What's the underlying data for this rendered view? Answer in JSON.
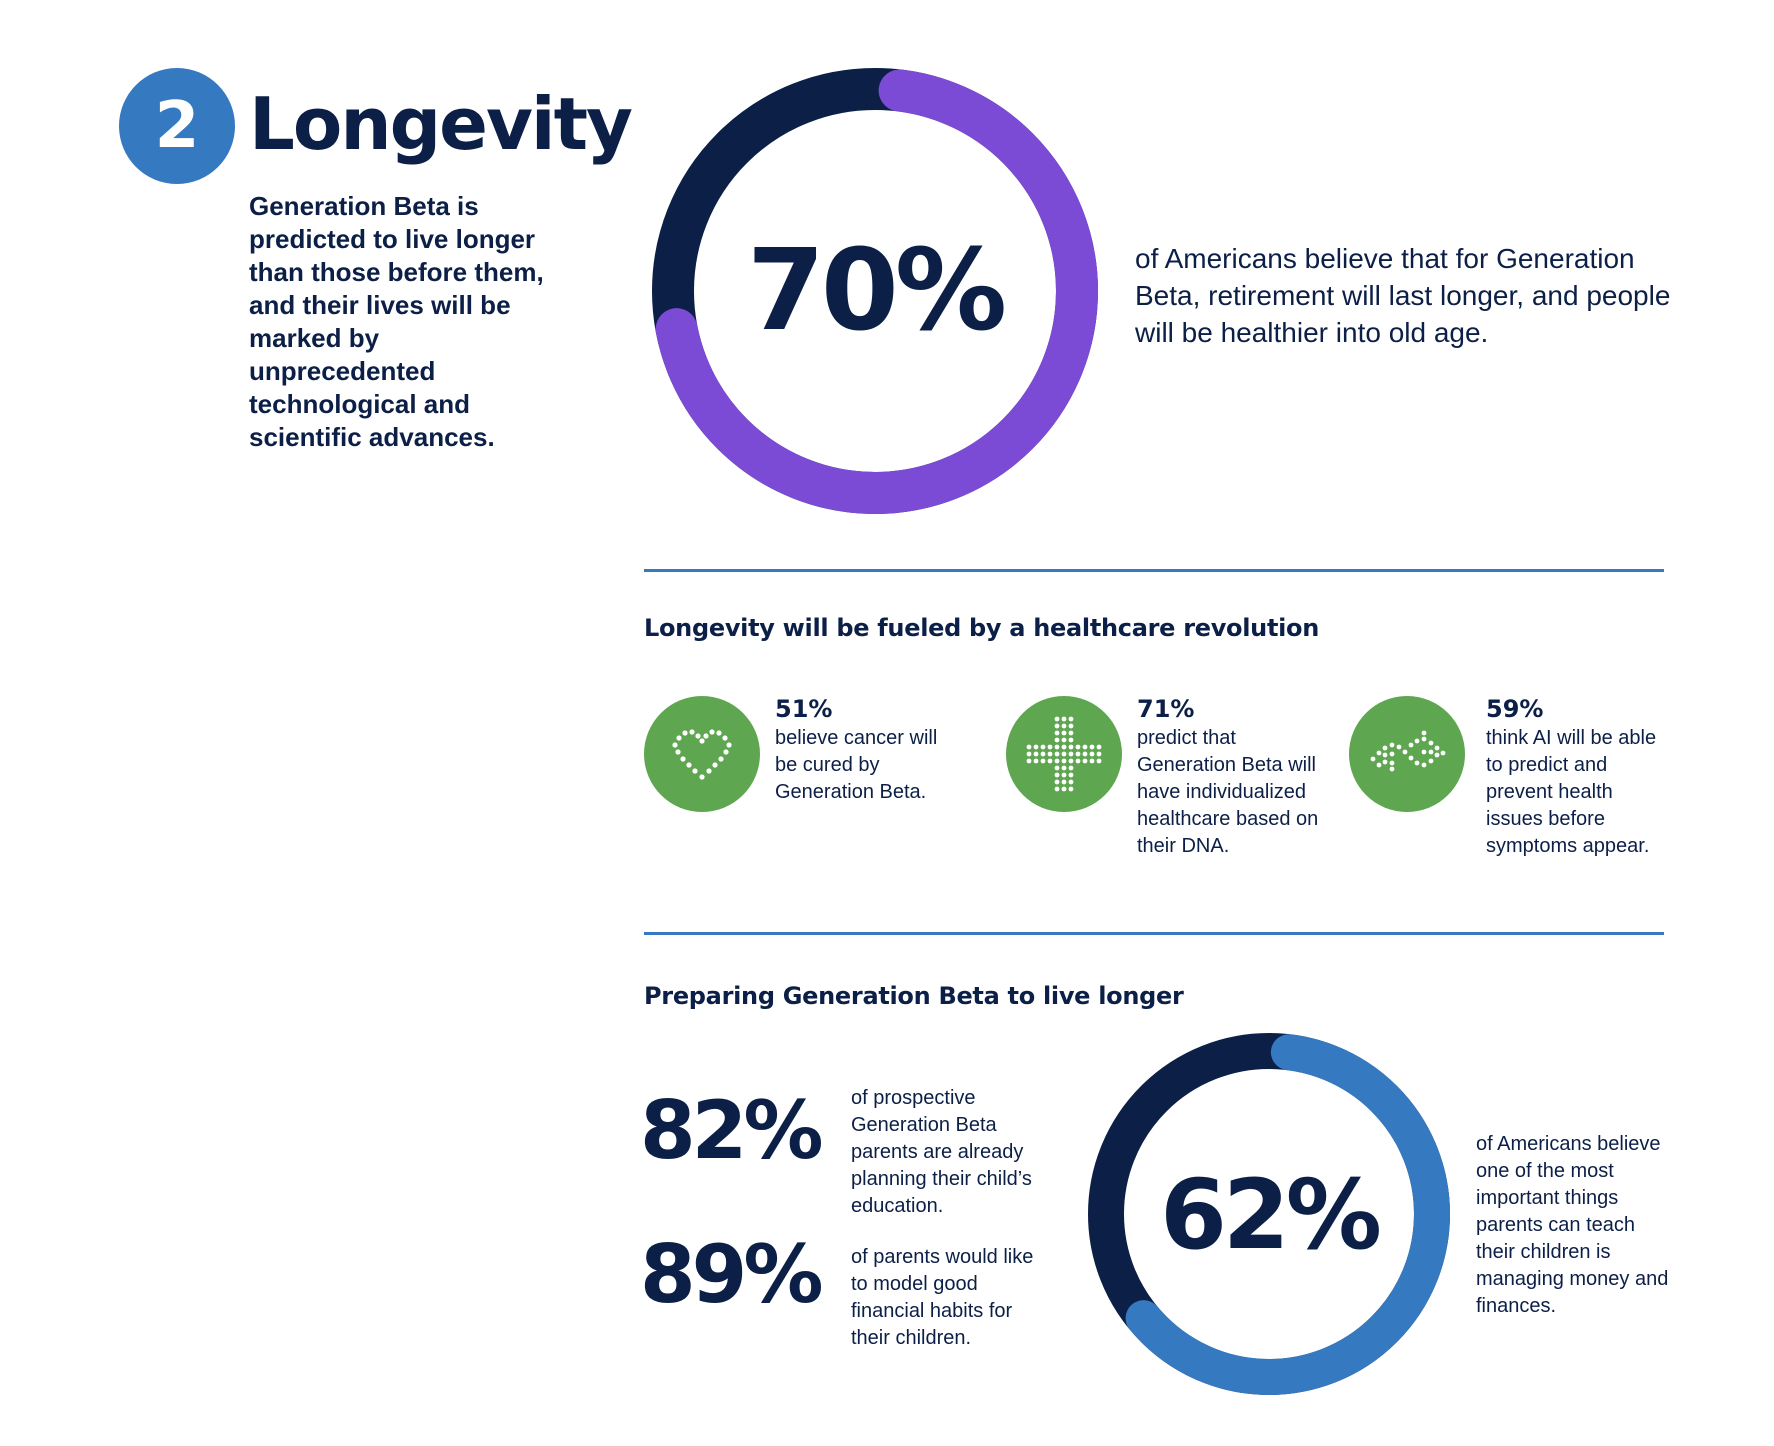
{
  "header": {
    "number": "2",
    "title": "Longevity",
    "intro": "Generation Beta is predicted to live longer than those before them, and their lives will be marked by unprecedented technological and scientific advances."
  },
  "main_stat": {
    "percent_label": "70%",
    "value": 70,
    "text": "of Americans believe that for Generation Beta, retirement will last longer, and people will be healthier into old age.",
    "fill_color": "#7b4bd6",
    "track_color": "#0c1f47"
  },
  "healthcare": {
    "heading": "Longevity will be fueled by a healthcare revolution",
    "icon_color": "#5fa651",
    "items": [
      {
        "icon": "heart-icon",
        "percent": "51%",
        "text": "believe cancer will be cured by Generation Beta."
      },
      {
        "icon": "medical-cross-icon",
        "percent": "71%",
        "text": "predict that Generation Beta will have individualized healthcare based on their DNA."
      },
      {
        "icon": "dna-helix-icon",
        "percent": "59%",
        "text": "think AI will be able to predict and prevent health issues before symptoms appear."
      }
    ]
  },
  "preparing": {
    "heading": "Preparing Generation Beta to live longer",
    "stats": [
      {
        "percent": "82%",
        "text": "of prospective Generation Beta parents are already planning their child’s education."
      },
      {
        "percent": "89%",
        "text": "of parents would like to model good financial habits for their children."
      }
    ],
    "donut": {
      "percent_label": "62%",
      "value": 62,
      "text": "of Americans believe one of the most important things parents can teach their children is managing money and finances.",
      "fill_color": "#3579c1",
      "track_color": "#0c1f47"
    }
  },
  "colors": {
    "navy": "#0c1f47",
    "blue": "#3579c1",
    "purple": "#7b4bd6",
    "green": "#5fa651"
  }
}
